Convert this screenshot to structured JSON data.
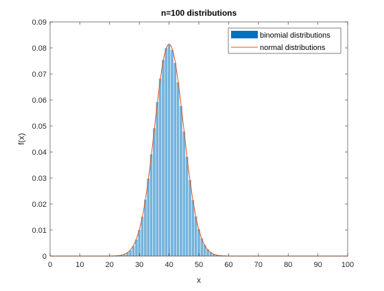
{
  "chart_data": {
    "type": "bar",
    "title": "n=100 distributions",
    "xlabel": "x",
    "ylabel": "f(x)",
    "xlim": [
      0,
      100
    ],
    "ylim": [
      0,
      0.09
    ],
    "xticks": [
      0,
      10,
      20,
      30,
      40,
      50,
      60,
      70,
      80,
      90,
      100
    ],
    "yticks": [
      0,
      0.01,
      0.02,
      0.03,
      0.04,
      0.05,
      0.06,
      0.07,
      0.08,
      0.09
    ],
    "grid": false,
    "legend_location": "top-right",
    "series": [
      {
        "name": "binomial distributions",
        "kind": "bar",
        "color": "#0072BD",
        "distribution": "binomial",
        "n": 100,
        "p": 0.4,
        "x_range": [
          0,
          100
        ]
      },
      {
        "name": "normal distributions",
        "kind": "line",
        "color": "#D95319",
        "distribution": "normal",
        "mean": 40,
        "std": 4.899,
        "x_range": [
          0,
          100
        ]
      }
    ]
  }
}
